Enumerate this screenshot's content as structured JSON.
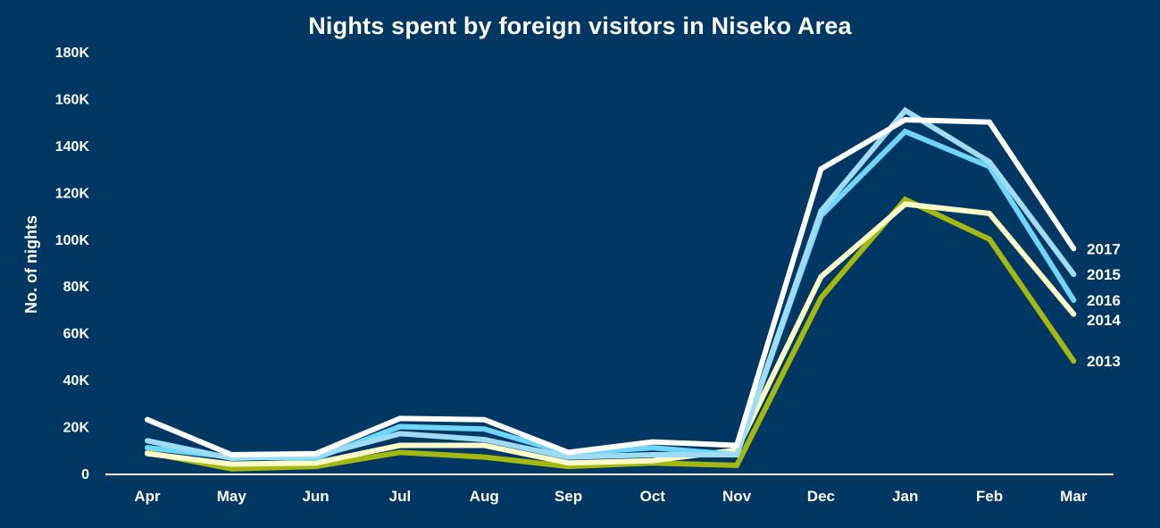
{
  "chart_data": {
    "type": "line",
    "title": "Nights spent by foreign visitors in Niseko Area",
    "xlabel": "",
    "ylabel": "No. of nights",
    "categories": [
      "Apr",
      "May",
      "Jun",
      "Jul",
      "Aug",
      "Sep",
      "Oct",
      "Nov",
      "Dec",
      "Jan",
      "Feb",
      "Mar"
    ],
    "ylim": [
      0,
      180000
    ],
    "yticks": [
      {
        "value": 0,
        "label": "0"
      },
      {
        "value": 20000,
        "label": "20K"
      },
      {
        "value": 40000,
        "label": "40K"
      },
      {
        "value": 60000,
        "label": "60K"
      },
      {
        "value": 80000,
        "label": "80K"
      },
      {
        "value": 100000,
        "label": "100K"
      },
      {
        "value": 120000,
        "label": "120K"
      },
      {
        "value": 140000,
        "label": "140K"
      },
      {
        "value": 160000,
        "label": "160K"
      },
      {
        "value": 180000,
        "label": "180K"
      }
    ],
    "grid": false,
    "legend": "inline labels at right end of lines",
    "series": [
      {
        "name": "2013",
        "color": "#a5b80f",
        "values": [
          9000,
          2000,
          3000,
          9000,
          7000,
          3000,
          4500,
          3500,
          75000,
          117000,
          100000,
          48000
        ]
      },
      {
        "name": "2014",
        "color": "#fcfcc8",
        "values": [
          8500,
          4000,
          4500,
          12000,
          12000,
          4500,
          5500,
          10000,
          84000,
          115000,
          111000,
          68000
        ]
      },
      {
        "name": "2016",
        "color": "#6fd6f7",
        "values": [
          11000,
          7000,
          6500,
          20000,
          19000,
          8500,
          11000,
          8000,
          110000,
          146000,
          131000,
          74000
        ]
      },
      {
        "name": "2015",
        "color": "#9fdcf4",
        "values": [
          14000,
          6500,
          7500,
          17000,
          14500,
          7000,
          8000,
          8000,
          112000,
          155000,
          133000,
          85000
        ]
      },
      {
        "name": "2017",
        "color": "#ffffff",
        "values": [
          23000,
          8000,
          8500,
          23500,
          23000,
          9000,
          13500,
          12000,
          130000,
          151000,
          150000,
          96000
        ]
      }
    ]
  }
}
